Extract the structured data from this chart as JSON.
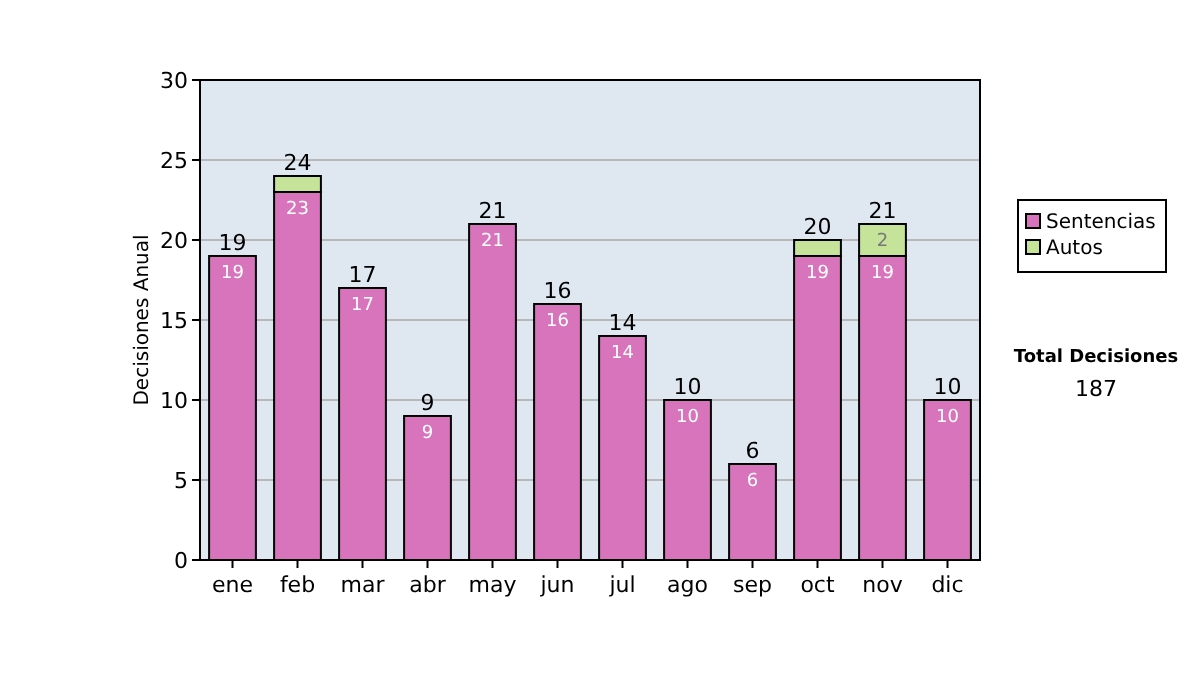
{
  "chart_data": {
    "type": "bar",
    "stacked": true,
    "ylabel": "Decisiones Anual",
    "categories": [
      "ene",
      "feb",
      "mar",
      "abr",
      "may",
      "jun",
      "jul",
      "ago",
      "sep",
      "oct",
      "nov",
      "dic"
    ],
    "series": [
      {
        "name": "Sentencias",
        "color": "#d874bc",
        "values": [
          19,
          23,
          17,
          9,
          21,
          16,
          14,
          10,
          6,
          19,
          19,
          10
        ],
        "value_labels": [
          "19",
          "23",
          "17",
          "9",
          "21",
          "16",
          "14",
          "10",
          "6",
          "19",
          "19",
          "10"
        ]
      },
      {
        "name": "Autos",
        "color": "#c6e39a",
        "values": [
          0,
          1,
          0,
          0,
          0,
          0,
          0,
          0,
          0,
          1,
          2,
          0
        ],
        "value_labels": [
          null,
          null,
          null,
          null,
          null,
          null,
          null,
          null,
          null,
          null,
          "2",
          null
        ]
      }
    ],
    "totals": [
      "19",
      "24",
      "17",
      "9",
      "21",
      "16",
      "14",
      "10",
      "6",
      "20",
      "21",
      "10"
    ],
    "ylim": [
      0,
      30
    ],
    "yticks": [
      0,
      5,
      10,
      15,
      20,
      25,
      30
    ],
    "grid": "y",
    "legend": "right",
    "annotations": [
      "Total Decisiones",
      "187"
    ]
  }
}
